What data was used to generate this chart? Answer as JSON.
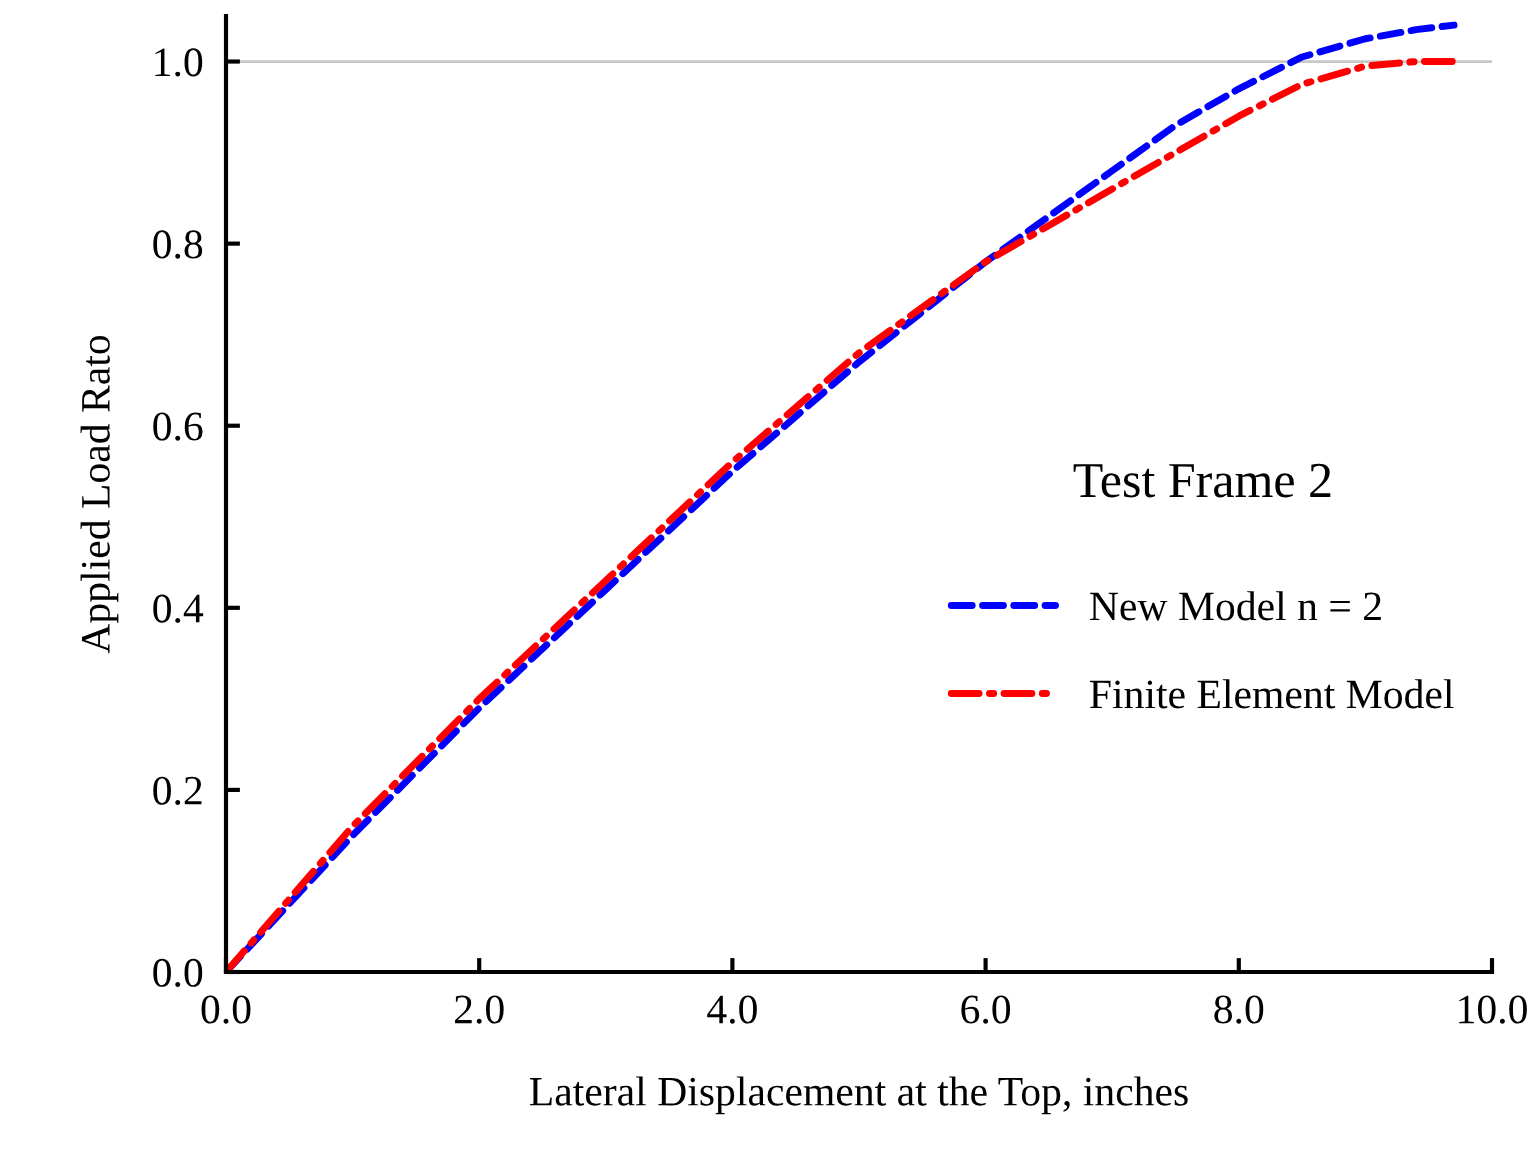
{
  "chart_data": {
    "type": "line",
    "xlabel": "Lateral Displacement at the Top, inches",
    "ylabel": "Applied Load Rato",
    "legend_title": "Test Frame 2",
    "xlim": [
      0,
      10
    ],
    "xticks": [
      {
        "value": 0,
        "label": "0.0"
      },
      {
        "value": 2,
        "label": "2.0"
      },
      {
        "value": 4,
        "label": "4.0"
      },
      {
        "value": 6,
        "label": "6.0"
      },
      {
        "value": 8,
        "label": "8.0"
      },
      {
        "value": 10,
        "label": "10.0"
      }
    ],
    "ylim": [
      0,
      1.05
    ],
    "yticks": [
      {
        "value": 0,
        "label": "0.0"
      },
      {
        "value": 0.2,
        "label": "0.2"
      },
      {
        "value": 0.4,
        "label": "0.4"
      },
      {
        "value": 0.6,
        "label": "0.6"
      },
      {
        "value": 0.8,
        "label": "0.8"
      },
      {
        "value": 1.0,
        "label": "1.0"
      }
    ],
    "ref_lines": [
      {
        "axis": "y",
        "value": 1.0,
        "color": "#c8c8c8"
      }
    ],
    "legend": "right",
    "grid": false,
    "series": [
      {
        "name": "New Model n = 2",
        "color": "#0000ff",
        "line_style": "dashed",
        "x": [
          0,
          1,
          2,
          3,
          4,
          5,
          6,
          6.5,
          7,
          7.5,
          8,
          8.5,
          9,
          9.4,
          9.7
        ],
        "values": [
          0,
          0.15,
          0.29,
          0.42,
          0.55,
          0.67,
          0.78,
          0.83,
          0.88,
          0.93,
          0.97,
          1.005,
          1.025,
          1.035,
          1.04
        ]
      },
      {
        "name": "Finite Element Model",
        "color": "#ff0000",
        "line_style": "dashdot",
        "x": [
          0,
          1,
          2,
          3,
          4,
          5,
          6,
          6.5,
          7,
          7.5,
          8,
          8.5,
          9,
          9.4,
          9.7
        ],
        "values": [
          0,
          0.16,
          0.3,
          0.43,
          0.56,
          0.68,
          0.78,
          0.82,
          0.86,
          0.9,
          0.94,
          0.975,
          0.995,
          1.0,
          1.0
        ]
      }
    ]
  }
}
